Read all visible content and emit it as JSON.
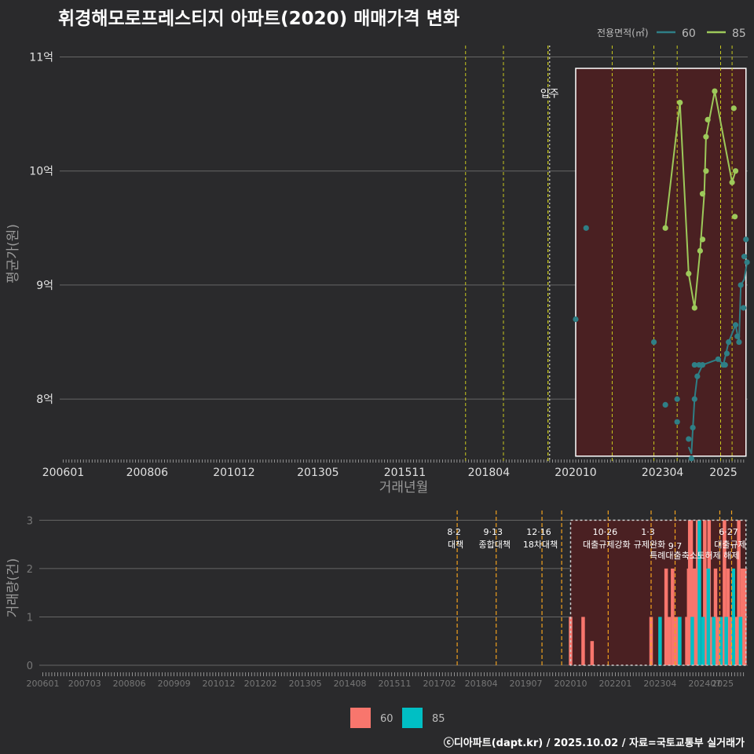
{
  "title": "휘경해모로프레스티지 아파트(2020) 매매가격 변화",
  "credit": "ⓒ디아파트(dapt.kr) / 2025.10.02 / 자료=국토교통부 실거래가",
  "legend_top": {
    "title": "전용면적(㎡)",
    "items": [
      {
        "label": "60",
        "color": "#2f7f86"
      },
      {
        "label": "85",
        "color": "#9dc95a"
      }
    ]
  },
  "legend_bottom": {
    "items": [
      {
        "label": "60",
        "color": "#f8766d"
      },
      {
        "label": "85",
        "color": "#00bfc4"
      }
    ]
  },
  "chart_data": [
    {
      "type": "line",
      "title": "휘경해모로프레스티지 아파트(2020) 매매가격 변화",
      "xlabel": "거래년월",
      "ylabel": "평균가(원)",
      "x_ticks": [
        "200601",
        "200806",
        "201012",
        "201305",
        "201511",
        "201804",
        "202010",
        "202304",
        "2025"
      ],
      "y_ticks": [
        {
          "v": 8,
          "label": "8억"
        },
        {
          "v": 9,
          "label": "9억"
        },
        {
          "v": 10,
          "label": "10억"
        },
        {
          "v": 11,
          "label": "11억"
        }
      ],
      "ylim": [
        7.45,
        11.1
      ],
      "xlim": [
        2005.9,
        2025.7
      ],
      "event_lines": [
        2017.58,
        2018.67,
        2019.95,
        2021.8,
        2023.0,
        2023.67,
        2024.92,
        2025.25
      ],
      "move_in_line": {
        "x": 2020.0,
        "label": "입주"
      },
      "highlight_range": {
        "x": [
          2020.75,
          2025.65
        ],
        "y": [
          7.5,
          10.9
        ]
      },
      "series": [
        {
          "name": "60",
          "color": "#2f7f86",
          "points": [
            [
              2020.75,
              8.7
            ],
            [
              2021.05,
              9.5
            ],
            [
              2023.0,
              8.5
            ],
            [
              2023.33,
              7.95
            ],
            [
              2023.67,
              7.8
            ],
            [
              2023.67,
              8.0
            ],
            [
              2024.0,
              7.65
            ],
            [
              2024.08,
              7.48
            ],
            [
              2024.12,
              7.75
            ],
            [
              2024.17,
              8.0
            ],
            [
              2024.17,
              8.3
            ],
            [
              2024.25,
              8.2
            ],
            [
              2024.3,
              8.3
            ],
            [
              2024.4,
              8.3
            ],
            [
              2024.85,
              8.35
            ],
            [
              2025.0,
              8.3
            ],
            [
              2025.05,
              8.3
            ],
            [
              2025.1,
              8.4
            ],
            [
              2025.15,
              8.5
            ],
            [
              2025.35,
              8.65
            ],
            [
              2025.4,
              8.55
            ],
            [
              2025.45,
              8.5
            ],
            [
              2025.5,
              9.0
            ],
            [
              2025.58,
              8.8
            ],
            [
              2025.6,
              9.25
            ],
            [
              2025.65,
              9.4
            ],
            [
              2025.68,
              9.2
            ]
          ],
          "line": [
            [
              2024.0,
              7.58
            ],
            [
              2024.08,
              7.52
            ],
            [
              2024.17,
              8.0
            ],
            [
              2024.25,
              8.2
            ],
            [
              2024.4,
              8.3
            ],
            [
              2024.85,
              8.35
            ],
            [
              2025.0,
              8.3
            ],
            [
              2025.15,
              8.5
            ],
            [
              2025.35,
              8.65
            ],
            [
              2025.45,
              8.5
            ],
            [
              2025.5,
              9.0
            ],
            [
              2025.6,
              9.05
            ],
            [
              2025.68,
              9.2
            ]
          ]
        },
        {
          "name": "85",
          "color": "#9dc95a",
          "points": [
            [
              2023.33,
              9.5
            ],
            [
              2023.75,
              10.6
            ],
            [
              2024.0,
              9.1
            ],
            [
              2024.17,
              8.8
            ],
            [
              2024.33,
              9.3
            ],
            [
              2024.4,
              9.4
            ],
            [
              2024.4,
              9.8
            ],
            [
              2024.5,
              10.0
            ],
            [
              2024.5,
              10.3
            ],
            [
              2024.55,
              10.45
            ],
            [
              2024.75,
              10.7
            ],
            [
              2025.25,
              9.9
            ],
            [
              2025.3,
              10.55
            ],
            [
              2025.33,
              9.6
            ],
            [
              2025.35,
              10.0
            ]
          ],
          "line": [
            [
              2023.33,
              9.5
            ],
            [
              2023.75,
              10.6
            ],
            [
              2024.0,
              9.1
            ],
            [
              2024.17,
              8.8
            ],
            [
              2024.33,
              9.3
            ],
            [
              2024.45,
              9.8
            ],
            [
              2024.5,
              10.3
            ],
            [
              2024.75,
              10.7
            ],
            [
              2025.25,
              9.9
            ],
            [
              2025.35,
              10.0
            ]
          ]
        }
      ]
    },
    {
      "type": "bar",
      "ylabel": "거래량(건)",
      "x_ticks": [
        "200601",
        "200703",
        "200806",
        "200909",
        "201012",
        "201202",
        "201305",
        "201408",
        "201511",
        "201702",
        "201804",
        "201907",
        "202010",
        "202201",
        "202304",
        "202407",
        "2025"
      ],
      "y_ticks": [
        0,
        1,
        2,
        3
      ],
      "ylim": [
        0,
        3.2
      ],
      "xlim": [
        2005.9,
        2025.7
      ],
      "highlight_range": {
        "x": [
          2020.75,
          2025.65
        ],
        "y": [
          0,
          3
        ]
      },
      "events": [
        {
          "x": 2017.58,
          "date": "8·2",
          "name": "대책",
          "row": 0
        },
        {
          "x": 2018.67,
          "date": "9·13",
          "name": "종합대책",
          "row": 0
        },
        {
          "x": 2019.95,
          "date": "12·16",
          "name": "18차대책",
          "row": 0
        },
        {
          "x": 2020.5,
          "date": "",
          "name": "",
          "row": 0
        },
        {
          "x": 2021.8,
          "date": "10·26",
          "name": "대출규제강화",
          "row": 0
        },
        {
          "x": 2023.0,
          "date": "1·3",
          "name": "규제완화",
          "row": 0
        },
        {
          "x": 2023.67,
          "date": "9·7",
          "name": "특례대출축소",
          "row": 1
        },
        {
          "x": 2024.92,
          "date": "",
          "name": "토허제 해제",
          "row": 1
        },
        {
          "x": 2025.25,
          "date": "6·27",
          "name": "대출규제",
          "row": 0
        }
      ],
      "bars_60": [
        [
          2020.75,
          1
        ],
        [
          2021.1,
          1
        ],
        [
          2021.35,
          0.5
        ],
        [
          2023.0,
          1
        ],
        [
          2023.42,
          2
        ],
        [
          2023.5,
          1
        ],
        [
          2023.6,
          2
        ],
        [
          2023.68,
          1
        ],
        [
          2023.75,
          1
        ],
        [
          2024.0,
          1
        ],
        [
          2024.05,
          2
        ],
        [
          2024.08,
          3
        ],
        [
          2024.12,
          3
        ],
        [
          2024.2,
          2
        ],
        [
          2024.25,
          2
        ],
        [
          2024.3,
          3
        ],
        [
          2024.5,
          3
        ],
        [
          2024.55,
          2
        ],
        [
          2024.62,
          3
        ],
        [
          2024.7,
          1
        ],
        [
          2024.8,
          2
        ],
        [
          2024.88,
          1
        ],
        [
          2025.0,
          1
        ],
        [
          2025.05,
          3
        ],
        [
          2025.15,
          2
        ],
        [
          2025.25,
          1
        ],
        [
          2025.35,
          1
        ],
        [
          2025.4,
          1
        ],
        [
          2025.45,
          3
        ],
        [
          2025.55,
          2
        ],
        [
          2025.62,
          2
        ]
      ],
      "bars_85": [
        [
          2023.25,
          1
        ],
        [
          2023.8,
          1
        ],
        [
          2024.15,
          1
        ],
        [
          2024.35,
          3
        ],
        [
          2024.45,
          1
        ],
        [
          2024.6,
          2
        ],
        [
          2024.75,
          1
        ],
        [
          2024.95,
          1
        ],
        [
          2025.1,
          1
        ],
        [
          2025.3,
          2
        ],
        [
          2025.5,
          1
        ]
      ]
    }
  ]
}
